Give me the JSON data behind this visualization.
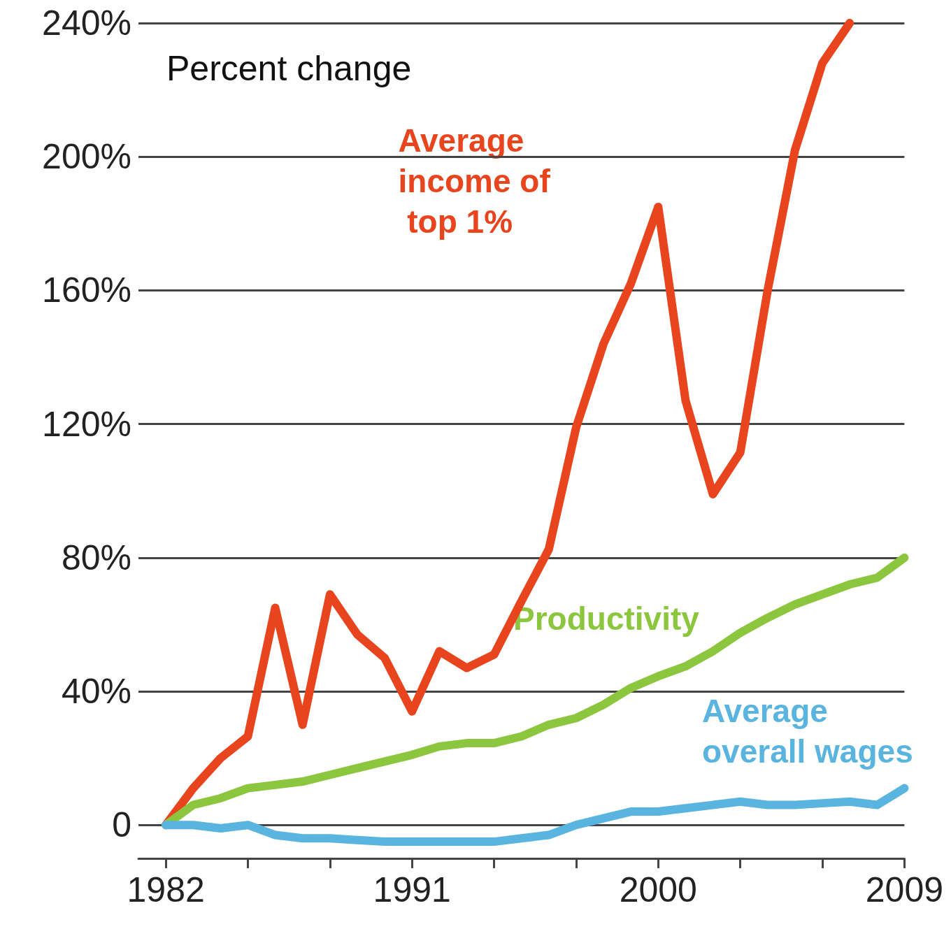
{
  "chart_data": {
    "type": "line",
    "ylabel": "Percent change",
    "x": [
      1982,
      1983,
      1984,
      1985,
      1986,
      1987,
      1988,
      1989,
      1990,
      1991,
      1992,
      1993,
      1994,
      1995,
      1996,
      1997,
      1998,
      1999,
      2000,
      2001,
      2002,
      2003,
      2004,
      2005,
      2006,
      2007,
      2008,
      2009
    ],
    "series": [
      {
        "name": "Average income of top 1%",
        "color": "#e8451e",
        "values": [
          0,
          11,
          20,
          26.5,
          65,
          30,
          69,
          57,
          50,
          34,
          52,
          47,
          51,
          67,
          82.5,
          119,
          144,
          162,
          185,
          127,
          99,
          111.5,
          160,
          202,
          228,
          240,
          null,
          null
        ]
      },
      {
        "name": "Productivity",
        "color": "#8cc63f",
        "values": [
          0,
          6,
          8,
          11,
          12,
          13,
          15,
          17,
          19,
          21,
          23.5,
          24.5,
          24.5,
          26.5,
          30,
          32,
          36,
          41,
          44.5,
          47.5,
          52,
          57.5,
          62,
          66,
          69,
          72,
          74,
          80
        ]
      },
      {
        "name": "Average overall wages",
        "color": "#5ab4e0",
        "values": [
          0,
          0,
          -1,
          0,
          -3,
          -4,
          -4,
          -4.5,
          -5,
          -5,
          -5,
          -5,
          -5,
          -4,
          -3,
          0,
          2,
          4,
          4,
          5,
          6,
          7,
          6,
          6,
          6.5,
          7,
          6,
          11
        ]
      }
    ],
    "xlim": [
      1981,
      2009
    ],
    "ylim": [
      -10,
      240
    ],
    "xticks": [
      1982,
      {
        "value": 1985,
        "label": null
      },
      {
        "value": 1988,
        "label": null
      },
      1991,
      {
        "value": 1994,
        "label": null
      },
      {
        "value": 1997,
        "label": null
      },
      2000,
      {
        "value": 2003,
        "label": null
      },
      {
        "value": 2006,
        "label": null
      },
      2009
    ],
    "yticks": [
      {
        "value": 0,
        "label": "0"
      },
      {
        "value": 40,
        "label": "40%"
      },
      {
        "value": 80,
        "label": "80%"
      },
      {
        "value": 120,
        "label": "120%"
      },
      {
        "value": 160,
        "label": "160%"
      },
      {
        "value": 200,
        "label": "200%"
      },
      {
        "value": 240,
        "label": "240%"
      }
    ],
    "grid": "y"
  }
}
